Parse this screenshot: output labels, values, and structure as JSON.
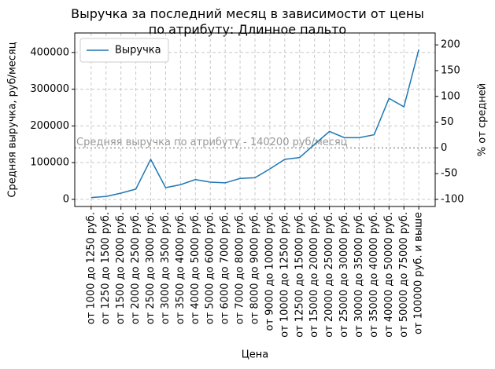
{
  "chart_data": {
    "type": "line",
    "title": "Выручка за последний месяц в зависимости от цены\nпо атрибуту: Длинное пальто",
    "x_label": "Цена",
    "y_label": "Средняя выручка, руб/месяц",
    "y2_label": "% от средней",
    "categories": [
      "от 1000 до 1250 руб.",
      "от 1250 до 1500 руб.",
      "от 1500 до 2000 руб.",
      "от 2000 до 2500 руб.",
      "от 2500 до 3000 руб.",
      "от 3000 до 3500 руб.",
      "от 3500 до 4000 руб.",
      "от 4000 до 5000 руб.",
      "от 5000 до 6000 руб.",
      "от 6000 до 7000 руб.",
      "от 7000 до 8000 руб.",
      "от 8000 до 9000 руб.",
      "от 9000 до 10000 руб.",
      "от 10000 до 12500 руб.",
      "от 12500 до 15000 руб.",
      "от 15000 до 20000 руб.",
      "от 20000 до 25000 руб.",
      "от 25000 до 30000 руб.",
      "от 30000 до 35000 руб.",
      "от 35000 до 40000 руб.",
      "от 40000 до 50000 руб.",
      "от 50000 до 75000 руб.",
      "от 100000 руб. и выше"
    ],
    "series": [
      {
        "name": "Выручка",
        "color": "#1f77b4",
        "values": [
          5000,
          8000,
          17000,
          28000,
          109000,
          32000,
          40000,
          54000,
          47000,
          45000,
          57000,
          59000,
          83000,
          109000,
          114000,
          150000,
          185000,
          168000,
          168000,
          176000,
          275000,
          252000,
          408000
        ]
      }
    ],
    "average": 140200,
    "average_label": "Средняя выручка по атрибуту - 140200 руб/месяц",
    "ylim": [
      -19300,
      453000
    ],
    "yticks": [
      0,
      100000,
      200000,
      300000,
      400000
    ],
    "y2lim": [
      -113.8,
      223.1
    ],
    "y2ticks": [
      -100,
      -50,
      0,
      50,
      100,
      150,
      200
    ],
    "grid": true,
    "legend": "upper left"
  }
}
